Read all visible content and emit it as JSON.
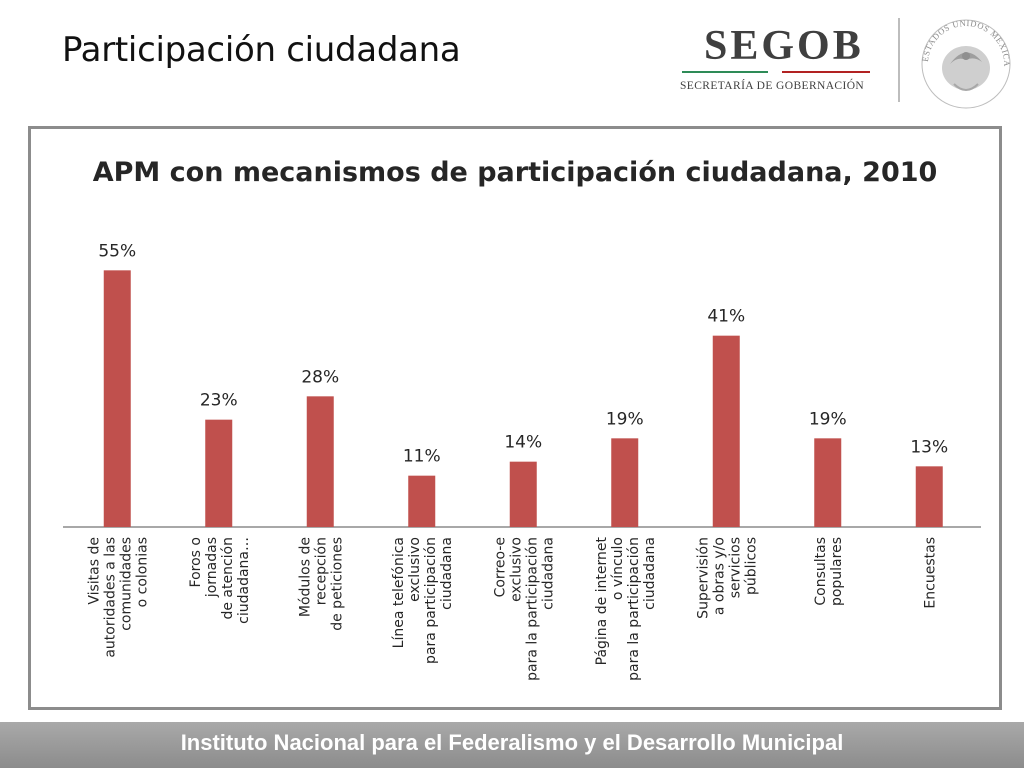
{
  "slide": {
    "title": "Participación ciudadana",
    "footer": "Instituto Nacional para el Federalismo y el Desarrollo Municipal"
  },
  "logo": {
    "wordmark": "SEGOB",
    "subtitle": "SECRETARÍA DE GOBERNACIÓN",
    "seal_text": "ESTADOS UNIDOS MEXICANOS",
    "seal_icon": "mexican-coat-of-arms-icon",
    "colors": {
      "green": "#2e8b57",
      "red": "#b22222"
    }
  },
  "chart_data": {
    "type": "bar",
    "title": "APM con mecanismos de participación ciudadana, 2010",
    "categories": [
      [
        "Visitas de",
        "autoridades a las",
        "comunidades",
        "o colonias"
      ],
      [
        "Foros o",
        "jornadas",
        "de atención",
        "ciudadana…"
      ],
      [
        "Módulos de",
        "recepción",
        "de peticiones"
      ],
      [
        "Línea telefónica",
        "exclusivo",
        "para  participación",
        "ciudadana"
      ],
      [
        "Correo-e",
        "exclusivo",
        "para la participación",
        "ciudadana"
      ],
      [
        "Página de internet",
        "o vínculo",
        "para la participación",
        "ciudadana"
      ],
      [
        "Supervisión",
        "a obras y/o",
        "servicios",
        "públicos"
      ],
      [
        "Consultas",
        "populares"
      ],
      [
        "Encuestas"
      ]
    ],
    "values": [
      55,
      23,
      28,
      11,
      14,
      19,
      41,
      19,
      13
    ],
    "data_labels": [
      "55%",
      "23%",
      "28%",
      "11%",
      "14%",
      "19%",
      "41%",
      "19%",
      "13%"
    ],
    "ylim": [
      0,
      60
    ],
    "bar_color": "#c0504d",
    "grid": false,
    "legend": "none"
  }
}
